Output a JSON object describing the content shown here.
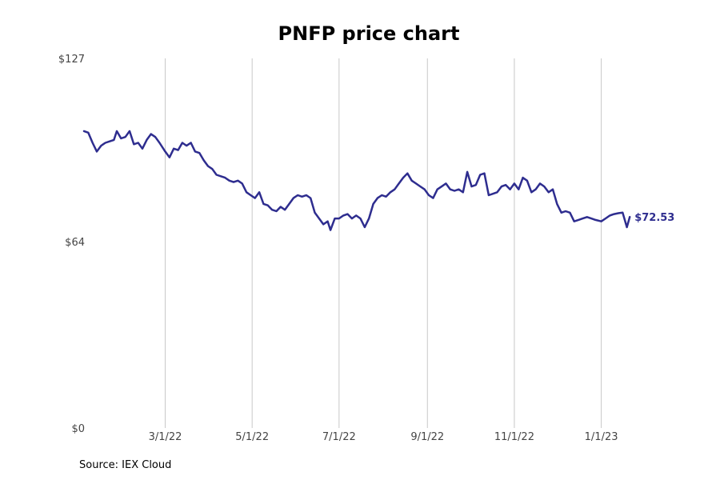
{
  "chart_data": {
    "type": "line",
    "title": "PNFP price chart",
    "xlabel": "",
    "ylabel": "",
    "ylim": [
      0,
      127
    ],
    "y_ticks": [
      {
        "value": 0,
        "label": "$0"
      },
      {
        "value": 64,
        "label": "$64"
      },
      {
        "value": 127,
        "label": "$127"
      }
    ],
    "x_range": [
      "2022-01-03",
      "2023-01-31"
    ],
    "x_ticks": [
      {
        "date": "2022-03-01",
        "label": "3/1/22"
      },
      {
        "date": "2022-05-01",
        "label": "5/1/22"
      },
      {
        "date": "2022-07-01",
        "label": "7/1/22"
      },
      {
        "date": "2022-09-01",
        "label": "9/1/22"
      },
      {
        "date": "2022-11-01",
        "label": "11/1/22"
      },
      {
        "date": "2023-01-01",
        "label": "1/1/23"
      }
    ],
    "grid": "vertical",
    "color": "#2e2d8f",
    "end_label": "$72.53",
    "series": [
      {
        "points": [
          [
            "2022-01-03",
            102
          ],
          [
            "2022-01-06",
            101.5
          ],
          [
            "2022-01-09",
            98
          ],
          [
            "2022-01-12",
            95
          ],
          [
            "2022-01-15",
            97
          ],
          [
            "2022-01-18",
            98
          ],
          [
            "2022-01-21",
            98.5
          ],
          [
            "2022-01-24",
            99
          ],
          [
            "2022-01-26",
            102
          ],
          [
            "2022-01-29",
            99.5
          ],
          [
            "2022-02-01",
            100
          ],
          [
            "2022-02-04",
            102
          ],
          [
            "2022-02-07",
            97.5
          ],
          [
            "2022-02-10",
            98
          ],
          [
            "2022-02-13",
            96
          ],
          [
            "2022-02-16",
            99
          ],
          [
            "2022-02-19",
            101
          ],
          [
            "2022-02-22",
            100
          ],
          [
            "2022-02-25",
            98
          ],
          [
            "2022-03-01",
            95
          ],
          [
            "2022-03-04",
            93
          ],
          [
            "2022-03-07",
            96
          ],
          [
            "2022-03-10",
            95.5
          ],
          [
            "2022-03-13",
            98
          ],
          [
            "2022-03-16",
            97
          ],
          [
            "2022-03-19",
            98
          ],
          [
            "2022-03-22",
            95
          ],
          [
            "2022-03-25",
            94.5
          ],
          [
            "2022-03-28",
            92
          ],
          [
            "2022-03-31",
            90
          ],
          [
            "2022-04-03",
            89
          ],
          [
            "2022-04-06",
            87
          ],
          [
            "2022-04-09",
            86.5
          ],
          [
            "2022-04-12",
            86
          ],
          [
            "2022-04-15",
            85
          ],
          [
            "2022-04-18",
            84.5
          ],
          [
            "2022-04-21",
            85
          ],
          [
            "2022-04-24",
            84
          ],
          [
            "2022-04-27",
            81
          ],
          [
            "2022-04-30",
            80
          ],
          [
            "2022-05-03",
            79
          ],
          [
            "2022-05-06",
            81
          ],
          [
            "2022-05-09",
            77
          ],
          [
            "2022-05-12",
            76.5
          ],
          [
            "2022-05-15",
            75
          ],
          [
            "2022-05-18",
            74.5
          ],
          [
            "2022-05-21",
            76
          ],
          [
            "2022-05-24",
            75
          ],
          [
            "2022-05-27",
            77
          ],
          [
            "2022-05-30",
            79
          ],
          [
            "2022-06-02",
            80
          ],
          [
            "2022-06-05",
            79.5
          ],
          [
            "2022-06-08",
            80
          ],
          [
            "2022-06-11",
            79
          ],
          [
            "2022-06-14",
            74
          ],
          [
            "2022-06-17",
            72
          ],
          [
            "2022-06-20",
            70
          ],
          [
            "2022-06-23",
            71
          ],
          [
            "2022-06-25",
            68
          ],
          [
            "2022-06-28",
            72
          ],
          [
            "2022-07-01",
            72
          ],
          [
            "2022-07-04",
            73
          ],
          [
            "2022-07-07",
            73.5
          ],
          [
            "2022-07-10",
            72
          ],
          [
            "2022-07-13",
            73
          ],
          [
            "2022-07-16",
            72
          ],
          [
            "2022-07-19",
            69
          ],
          [
            "2022-07-22",
            72
          ],
          [
            "2022-07-25",
            77
          ],
          [
            "2022-07-28",
            79
          ],
          [
            "2022-07-31",
            80
          ],
          [
            "2022-08-03",
            79.5
          ],
          [
            "2022-08-06",
            81
          ],
          [
            "2022-08-09",
            82
          ],
          [
            "2022-08-12",
            84
          ],
          [
            "2022-08-15",
            86
          ],
          [
            "2022-08-18",
            87.5
          ],
          [
            "2022-08-21",
            85
          ],
          [
            "2022-08-24",
            84
          ],
          [
            "2022-08-27",
            83
          ],
          [
            "2022-08-30",
            82
          ],
          [
            "2022-09-02",
            80
          ],
          [
            "2022-09-05",
            79
          ],
          [
            "2022-09-08",
            82
          ],
          [
            "2022-09-11",
            83
          ],
          [
            "2022-09-14",
            84
          ],
          [
            "2022-09-17",
            82
          ],
          [
            "2022-09-20",
            81.5
          ],
          [
            "2022-09-23",
            82
          ],
          [
            "2022-09-26",
            81
          ],
          [
            "2022-09-29",
            88
          ],
          [
            "2022-10-02",
            83
          ],
          [
            "2022-10-05",
            83.5
          ],
          [
            "2022-10-08",
            87
          ],
          [
            "2022-10-11",
            87.5
          ],
          [
            "2022-10-14",
            80
          ],
          [
            "2022-10-17",
            80.5
          ],
          [
            "2022-10-20",
            81
          ],
          [
            "2022-10-23",
            83
          ],
          [
            "2022-10-26",
            83.5
          ],
          [
            "2022-10-29",
            82
          ],
          [
            "2022-11-01",
            84
          ],
          [
            "2022-11-04",
            82
          ],
          [
            "2022-11-07",
            86
          ],
          [
            "2022-11-10",
            85
          ],
          [
            "2022-11-13",
            81
          ],
          [
            "2022-11-16",
            82
          ],
          [
            "2022-11-19",
            84
          ],
          [
            "2022-11-22",
            83
          ],
          [
            "2022-11-25",
            81
          ],
          [
            "2022-11-28",
            82
          ],
          [
            "2022-12-01",
            77
          ],
          [
            "2022-12-04",
            74
          ],
          [
            "2022-12-07",
            74.5
          ],
          [
            "2022-12-10",
            74
          ],
          [
            "2022-12-13",
            71
          ],
          [
            "2022-12-16",
            71.5
          ],
          [
            "2022-12-19",
            72
          ],
          [
            "2022-12-22",
            72.5
          ],
          [
            "2022-12-25",
            72
          ],
          [
            "2022-12-28",
            71.5
          ],
          [
            "2023-01-01",
            71
          ],
          [
            "2023-01-04",
            72
          ],
          [
            "2023-01-07",
            73
          ],
          [
            "2023-01-10",
            73.5
          ],
          [
            "2023-01-13",
            73.8
          ],
          [
            "2023-01-16",
            74
          ],
          [
            "2023-01-19",
            69
          ],
          [
            "2023-01-21",
            72.53
          ]
        ]
      }
    ]
  },
  "footer": {
    "source": "Source: IEX Cloud"
  }
}
